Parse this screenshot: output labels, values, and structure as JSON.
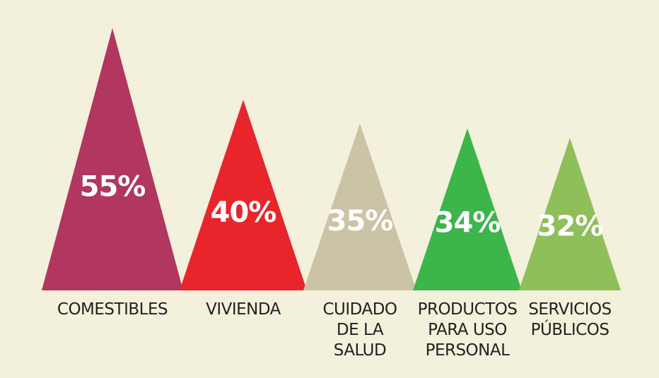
{
  "chart_data": {
    "type": "bar",
    "categories": [
      "COMESTIBLES",
      "VIVIENDA",
      "CUIDADO\nDE LA\nSALUD",
      "PRODUCTOS\nPARA USO\nPERSONAL",
      "SERVICIOS\nPÚBLICOS"
    ],
    "values": [
      55,
      40,
      35,
      34,
      32
    ],
    "value_labels": [
      "55%",
      "40%",
      "35%",
      "34%",
      "32%"
    ],
    "colors": [
      "#b13660",
      "#e8252b",
      "#cbc3a5",
      "#3cb54a",
      "#8ebf58"
    ],
    "mark_shape": "triangle",
    "ylim": [
      0,
      57.5
    ]
  }
}
